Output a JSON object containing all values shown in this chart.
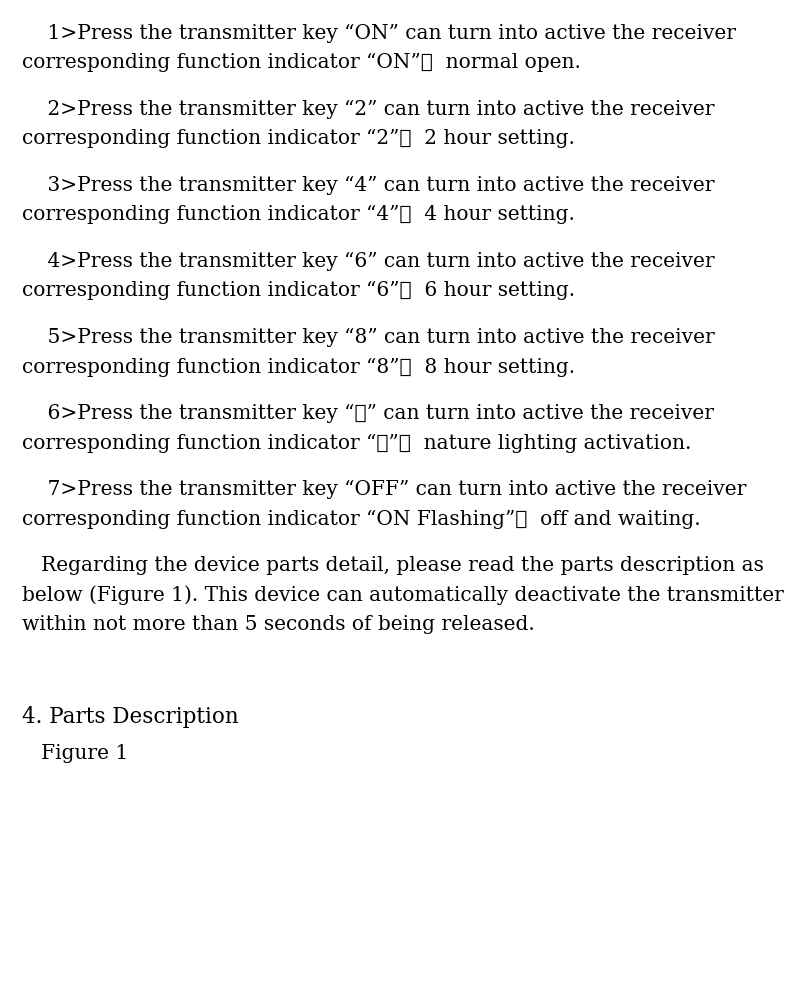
{
  "background_color": "#ffffff",
  "text_color": "#000000",
  "font_size_body": 14.5,
  "font_size_heading": 15.5,
  "font_size_figure": 14.5,
  "paragraphs": [
    {
      "lines": [
        "    1>Press the transmitter key “ON” can turn into active the receiver",
        "corresponding function indicator “ON”，  normal open."
      ],
      "style": "body"
    },
    {
      "lines": [
        "    2>Press the transmitter key “2” can turn into active the receiver",
        "corresponding function indicator “2”，  2 hour setting."
      ],
      "style": "body"
    },
    {
      "lines": [
        "    3>Press the transmitter key “4” can turn into active the receiver",
        "corresponding function indicator “4”，  4 hour setting."
      ],
      "style": "body"
    },
    {
      "lines": [
        "    4>Press the transmitter key “6” can turn into active the receiver",
        "corresponding function indicator “6”，  6 hour setting."
      ],
      "style": "body"
    },
    {
      "lines": [
        "    5>Press the transmitter key “8” can turn into active the receiver",
        "corresponding function indicator “8”，  8 hour setting."
      ],
      "style": "body"
    },
    {
      "lines": [
        "    6>Press the transmitter key “☉” can turn into active the receiver",
        "corresponding function indicator “☉”，  nature lighting activation."
      ],
      "style": "body"
    },
    {
      "lines": [
        "    7>Press the transmitter key “OFF” can turn into active the receiver",
        "corresponding function indicator “ON Flashing”，  off and waiting."
      ],
      "style": "body"
    },
    {
      "lines": [
        "   Regarding the device parts detail, please read the parts description as",
        "below (Figure 1). This device can automatically deactivate the transmitter",
        "within not more than 5 seconds of being released."
      ],
      "style": "body"
    },
    {
      "lines": [
        ""
      ],
      "style": "spacer"
    },
    {
      "lines": [
        "4. Parts Description"
      ],
      "style": "heading"
    },
    {
      "lines": [
        "   Figure 1"
      ],
      "style": "figure"
    }
  ]
}
